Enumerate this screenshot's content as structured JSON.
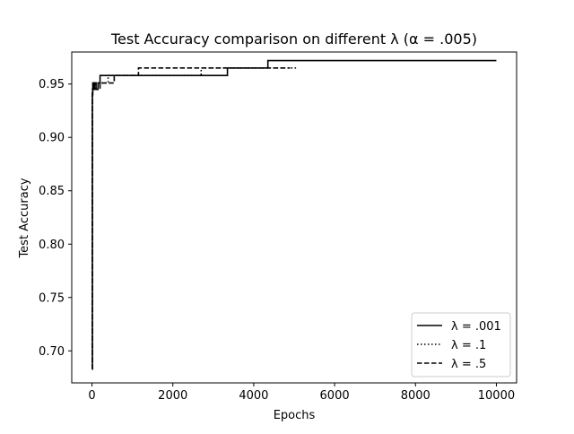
{
  "chart_data": {
    "type": "line",
    "title": "Test Accuracy comparison on different λ (α = .005)",
    "xlabel": "Epochs",
    "ylabel": "Test Accuracy",
    "xlim": [
      -500,
      10500
    ],
    "ylim": [
      0.67,
      0.98
    ],
    "xticks": [
      0,
      2000,
      4000,
      6000,
      8000,
      10000
    ],
    "xtick_labels": [
      "0",
      "2000",
      "4000",
      "6000",
      "8000",
      "10000"
    ],
    "yticks": [
      0.7,
      0.75,
      0.8,
      0.85,
      0.9,
      0.95
    ],
    "ytick_labels": [
      "0.70",
      "0.75",
      "0.80",
      "0.85",
      "0.90",
      "0.95"
    ],
    "grid": false,
    "legend_position": "lower-right",
    "series": [
      {
        "name": "λ = .001",
        "style": "solid",
        "color": "#000000",
        "x": [
          0,
          10,
          10,
          20,
          20,
          30,
          30,
          60,
          60,
          100,
          100,
          150,
          150,
          200,
          200,
          350,
          350,
          3350,
          3350,
          4350,
          4350,
          10000
        ],
        "y": [
          0.683,
          0.683,
          0.94,
          0.94,
          0.951,
          0.951,
          0.945,
          0.945,
          0.951,
          0.951,
          0.945,
          0.945,
          0.951,
          0.951,
          0.958,
          0.958,
          0.958,
          0.958,
          0.965,
          0.965,
          0.972,
          0.972
        ]
      },
      {
        "name": "λ = .1",
        "style": "dotted",
        "color": "#000000",
        "x": [
          0,
          10,
          10,
          30,
          30,
          80,
          80,
          150,
          150,
          400,
          400,
          2700,
          2700,
          5100
        ],
        "y": [
          0.683,
          0.683,
          0.945,
          0.945,
          0.951,
          0.951,
          0.945,
          0.945,
          0.951,
          0.951,
          0.958,
          0.958,
          0.965,
          0.965
        ]
      },
      {
        "name": "λ = .5",
        "style": "dashed",
        "color": "#000000",
        "x": [
          0,
          10,
          10,
          40,
          40,
          100,
          100,
          200,
          200,
          550,
          550,
          1150,
          1150,
          4900
        ],
        "y": [
          0.683,
          0.683,
          0.945,
          0.945,
          0.951,
          0.951,
          0.945,
          0.945,
          0.951,
          0.951,
          0.958,
          0.958,
          0.965,
          0.965
        ]
      }
    ]
  }
}
